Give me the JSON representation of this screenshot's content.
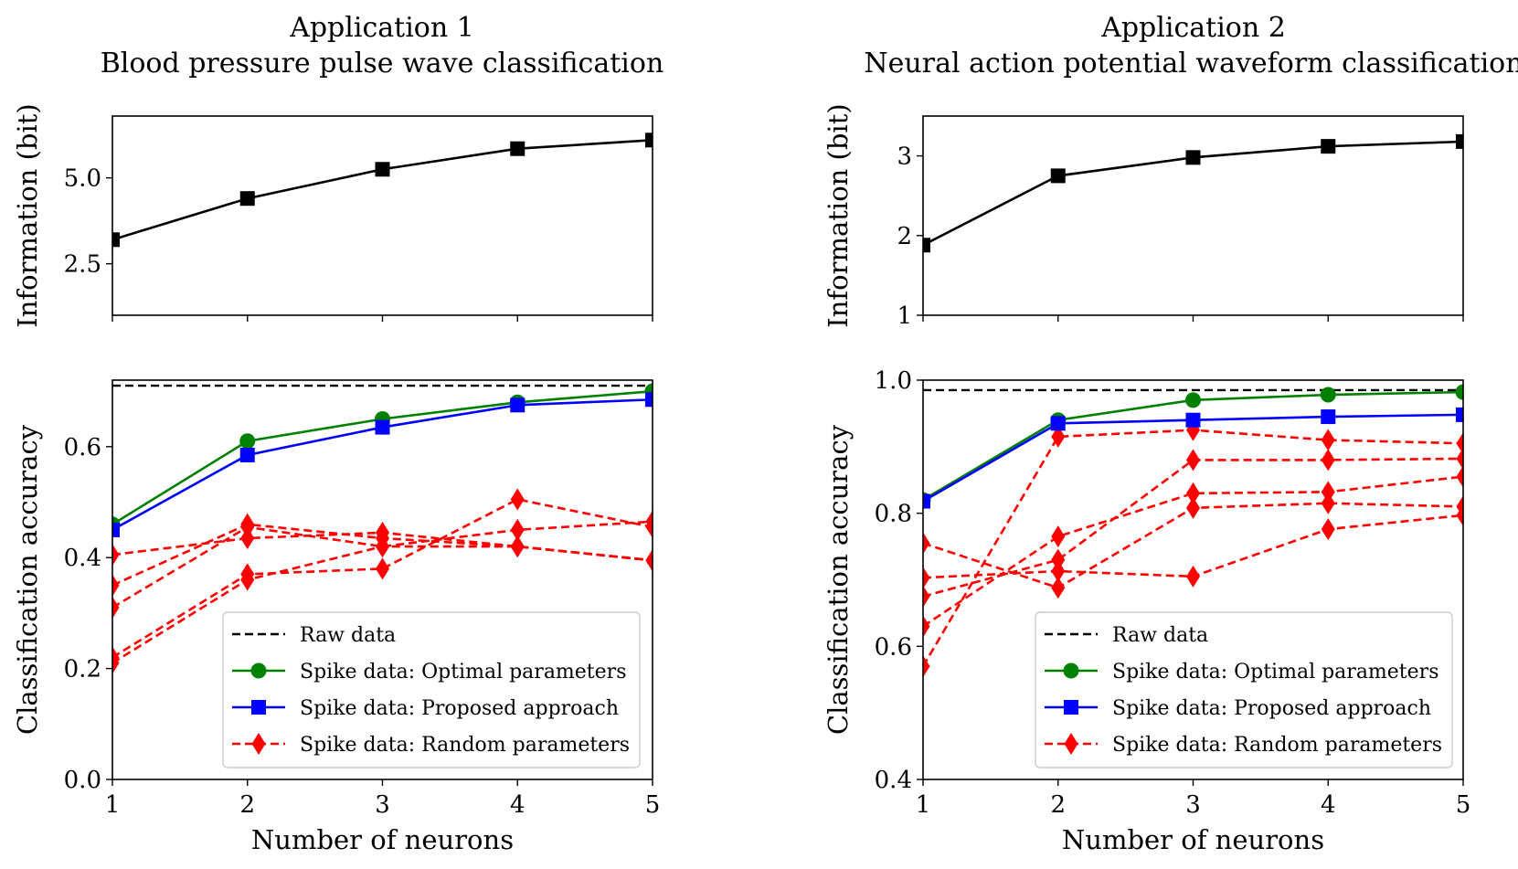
{
  "chart_data": [
    {
      "id": "a1_info",
      "type": "line",
      "title": "Application 1",
      "subtitle": "Blood pressure pulse wave classification",
      "xlabel": "",
      "ylabel": "Information (bit)",
      "xlim": [
        1,
        5
      ],
      "ylim": [
        1.0,
        6.8
      ],
      "xticks": [
        1,
        2,
        3,
        4,
        5
      ],
      "xticklabels_shown": false,
      "yticks": [
        2.5,
        5.0
      ],
      "ytick_labels": [
        "2.5",
        "5.0"
      ],
      "grid": false,
      "series": [
        {
          "color": "#000000",
          "marker": "square",
          "dashed": false,
          "x": [
            1,
            2,
            3,
            4,
            5
          ],
          "y": [
            3.2,
            4.4,
            5.25,
            5.85,
            6.1
          ]
        }
      ]
    },
    {
      "id": "a1_acc",
      "type": "line",
      "xlabel": "Number of neurons",
      "ylabel": "Classification accuracy",
      "xlim": [
        1,
        5
      ],
      "ylim": [
        0.0,
        0.72
      ],
      "xticks": [
        1,
        2,
        3,
        4,
        5
      ],
      "xtick_labels": [
        "1",
        "2",
        "3",
        "4",
        "5"
      ],
      "yticks": [
        0.0,
        0.2,
        0.4,
        0.6
      ],
      "ytick_labels": [
        "0.0",
        "0.2",
        "0.4",
        "0.6"
      ],
      "grid": false,
      "legend_position": "lower-right",
      "raw_data": 0.71,
      "series": [
        {
          "name": "Spike data: Optimal parameters",
          "color": "#008000",
          "marker": "circle",
          "dashed": false,
          "x": [
            1,
            2,
            3,
            4,
            5
          ],
          "y": [
            0.46,
            0.61,
            0.65,
            0.68,
            0.7
          ]
        },
        {
          "name": "Spike data: Proposed approach",
          "color": "#0000ff",
          "marker": "square",
          "dashed": false,
          "x": [
            1,
            2,
            3,
            4,
            5
          ],
          "y": [
            0.45,
            0.585,
            0.635,
            0.675,
            0.685
          ]
        },
        {
          "color": "#ff0000",
          "marker": "diamond",
          "dashed": true,
          "x": [
            1,
            2,
            3,
            4,
            5
          ],
          "y": [
            0.405,
            0.435,
            0.445,
            0.42,
            0.395
          ]
        },
        {
          "color": "#ff0000",
          "marker": "diamond",
          "dashed": true,
          "x": [
            1,
            2,
            3,
            4,
            5
          ],
          "y": [
            0.35,
            0.46,
            0.435,
            0.42,
            0.395
          ]
        },
        {
          "color": "#ff0000",
          "marker": "diamond",
          "dashed": true,
          "x": [
            1,
            2,
            3,
            4,
            5
          ],
          "y": [
            0.31,
            0.455,
            0.42,
            0.45,
            0.465
          ]
        },
        {
          "color": "#ff0000",
          "marker": "diamond",
          "dashed": true,
          "x": [
            1,
            2,
            3,
            4,
            5
          ],
          "y": [
            0.22,
            0.37,
            0.38,
            0.505,
            0.455
          ]
        },
        {
          "color": "#ff0000",
          "marker": "diamond",
          "dashed": true,
          "x": [
            1,
            2,
            3,
            4,
            5
          ],
          "y": [
            0.21,
            0.36,
            0.42,
            0.42,
            0.395
          ]
        }
      ],
      "legend": {
        "entries": [
          {
            "label": "Raw data",
            "color": "#000000",
            "dashed": true,
            "marker": "none"
          },
          {
            "label": "Spike data: Optimal parameters",
            "color": "#008000",
            "dashed": false,
            "marker": "circle"
          },
          {
            "label": "Spike data: Proposed approach",
            "color": "#0000ff",
            "dashed": false,
            "marker": "square"
          },
          {
            "label": "Spike data: Random parameters",
            "color": "#ff0000",
            "dashed": true,
            "marker": "diamond"
          }
        ]
      }
    },
    {
      "id": "a2_info",
      "type": "line",
      "title": "Application 2",
      "subtitle": "Neural action potential waveform classification",
      "xlabel": "",
      "ylabel": "Information (bit)",
      "xlim": [
        1,
        5
      ],
      "ylim": [
        1.0,
        3.5
      ],
      "xticks": [
        1,
        2,
        3,
        4,
        5
      ],
      "xticklabels_shown": false,
      "yticks": [
        1,
        2,
        3
      ],
      "ytick_labels": [
        "1",
        "2",
        "3"
      ],
      "grid": false,
      "series": [
        {
          "color": "#000000",
          "marker": "square",
          "dashed": false,
          "x": [
            1,
            2,
            3,
            4,
            5
          ],
          "y": [
            1.88,
            2.75,
            2.98,
            3.12,
            3.18
          ]
        }
      ]
    },
    {
      "id": "a2_acc",
      "type": "line",
      "xlabel": "Number of neurons",
      "ylabel": "Classification accuracy",
      "xlim": [
        1,
        5
      ],
      "ylim": [
        0.4,
        1.0
      ],
      "xticks": [
        1,
        2,
        3,
        4,
        5
      ],
      "xtick_labels": [
        "1",
        "2",
        "3",
        "4",
        "5"
      ],
      "yticks": [
        0.4,
        0.6,
        0.8,
        1.0
      ],
      "ytick_labels": [
        "0.4",
        "0.6",
        "0.8",
        "1.0"
      ],
      "grid": false,
      "legend_position": "lower-right",
      "raw_data": 0.985,
      "series": [
        {
          "name": "Spike data: Optimal parameters",
          "color": "#008000",
          "marker": "circle",
          "dashed": false,
          "x": [
            1,
            2,
            3,
            4,
            5
          ],
          "y": [
            0.82,
            0.94,
            0.97,
            0.978,
            0.982
          ]
        },
        {
          "name": "Spike data: Proposed approach",
          "color": "#0000ff",
          "marker": "square",
          "dashed": false,
          "x": [
            1,
            2,
            3,
            4,
            5
          ],
          "y": [
            0.818,
            0.935,
            0.94,
            0.945,
            0.948
          ]
        },
        {
          "color": "#ff0000",
          "marker": "diamond",
          "dashed": true,
          "x": [
            1,
            2,
            3,
            4,
            5
          ],
          "y": [
            0.57,
            0.915,
            0.925,
            0.91,
            0.905
          ]
        },
        {
          "color": "#ff0000",
          "marker": "diamond",
          "dashed": true,
          "x": [
            1,
            2,
            3,
            4,
            5
          ],
          "y": [
            0.63,
            0.765,
            0.83,
            0.832,
            0.855
          ]
        },
        {
          "color": "#ff0000",
          "marker": "diamond",
          "dashed": true,
          "x": [
            1,
            2,
            3,
            4,
            5
          ],
          "y": [
            0.675,
            0.73,
            0.88,
            0.88,
            0.882
          ]
        },
        {
          "color": "#ff0000",
          "marker": "diamond",
          "dashed": true,
          "x": [
            1,
            2,
            3,
            4,
            5
          ],
          "y": [
            0.703,
            0.713,
            0.705,
            0.776,
            0.797
          ]
        },
        {
          "color": "#ff0000",
          "marker": "diamond",
          "dashed": true,
          "x": [
            1,
            2,
            3,
            4,
            5
          ],
          "y": [
            0.755,
            0.688,
            0.808,
            0.815,
            0.81
          ]
        }
      ],
      "legend": {
        "entries": [
          {
            "label": "Raw data",
            "color": "#000000",
            "dashed": true,
            "marker": "none"
          },
          {
            "label": "Spike data: Optimal parameters",
            "color": "#008000",
            "dashed": false,
            "marker": "circle"
          },
          {
            "label": "Spike data: Proposed approach",
            "color": "#0000ff",
            "dashed": false,
            "marker": "square"
          },
          {
            "label": "Spike data: Random parameters",
            "color": "#ff0000",
            "dashed": true,
            "marker": "diamond"
          }
        ]
      }
    }
  ]
}
